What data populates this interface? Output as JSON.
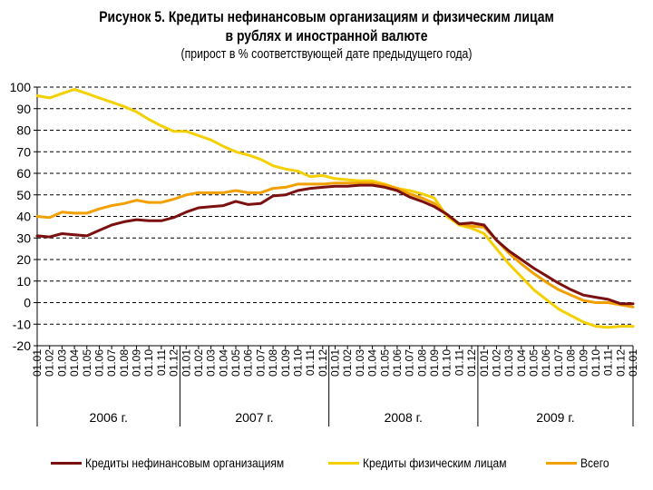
{
  "title": {
    "line1": "Рисунок 5. Кредиты нефинансовым организациям и физическим лицам",
    "line2": "в рублях и иностранной валюте",
    "line3": "(прирост в % соответствующей дате предыдущего года)"
  },
  "chart_data": {
    "type": "line",
    "ylim": [
      -20,
      100
    ],
    "yticks": [
      100,
      90,
      80,
      70,
      60,
      50,
      40,
      30,
      20,
      10,
      0,
      -10,
      -20
    ],
    "grid": "horizontal-dashed",
    "legend_position": "bottom",
    "x": [
      "01.01",
      "01.02",
      "01.03",
      "01.04",
      "01.05",
      "01.06",
      "01.07",
      "01.08",
      "01.09",
      "01.10",
      "01.11",
      "01.12",
      "01.01",
      "01.02",
      "01.03",
      "01.04",
      "01.05",
      "01.06",
      "01.07",
      "01.08",
      "01.09",
      "01.10",
      "01.11",
      "01.12",
      "01.01",
      "01.02",
      "01.03",
      "01.04",
      "01.05",
      "01.06",
      "01.07",
      "01.08",
      "01.09",
      "01.10",
      "01.11",
      "01.12",
      "01.01",
      "01.02",
      "01.03",
      "01.04",
      "01.05",
      "01.06",
      "01.07",
      "01.08",
      "01.09",
      "01.10",
      "01.11",
      "01.12",
      "01.01"
    ],
    "year_groups": [
      {
        "label": "2006 г.",
        "start": 0,
        "end": 11
      },
      {
        "label": "2007 г.",
        "start": 12,
        "end": 23
      },
      {
        "label": "2008 г.",
        "start": 24,
        "end": 35
      },
      {
        "label": "2009 г.",
        "start": 36,
        "end": 47
      }
    ],
    "series": [
      {
        "name": "Кредиты нефинансовым организациям",
        "color": "#7b1010",
        "values": [
          31,
          30.5,
          32,
          31.5,
          31,
          33.5,
          36,
          37.5,
          38.5,
          38,
          38,
          39.5,
          42,
          44,
          44.5,
          45,
          47,
          45.5,
          46,
          49.5,
          50,
          52,
          53,
          53.5,
          54,
          54,
          54.5,
          54.5,
          53.5,
          52,
          49,
          47,
          44.5,
          41,
          36.5,
          37,
          36,
          29,
          24,
          20,
          16,
          12.5,
          9,
          6,
          3.5,
          2.5,
          1.5,
          -0.5,
          -0.5
        ]
      },
      {
        "name": "Кредиты физическим лицам",
        "color": "#f5d000",
        "values": [
          96,
          95,
          97,
          99,
          97,
          95,
          93,
          91,
          88.5,
          85,
          82,
          79.5,
          79.5,
          77.5,
          75.5,
          72.5,
          70,
          68.5,
          66.5,
          63.5,
          62,
          61,
          58.5,
          59,
          57.5,
          57,
          56.5,
          56.5,
          55,
          53,
          52,
          50.5,
          48.5,
          40,
          36,
          34.5,
          32,
          25,
          18,
          12,
          6,
          1.5,
          -3,
          -6,
          -9,
          -11,
          -11.5,
          -11,
          -11
        ]
      },
      {
        "name": "Всего",
        "color": "#f2a000",
        "values": [
          40,
          39.5,
          42,
          41.5,
          41.5,
          43.5,
          45,
          46,
          47.5,
          46.5,
          46.5,
          48,
          50,
          51,
          51,
          51,
          52,
          51,
          51,
          53,
          53.5,
          55,
          55,
          55,
          55.5,
          55.5,
          55.5,
          55.5,
          54.5,
          53,
          50.5,
          48.5,
          46,
          41,
          36.5,
          35.5,
          35,
          29,
          23,
          18,
          13.5,
          9.5,
          6,
          3.5,
          1,
          0,
          0,
          -1,
          -2
        ]
      }
    ]
  },
  "legend": {
    "items": [
      {
        "label": "Кредиты нефинансовым организациям",
        "color": "#7b1010"
      },
      {
        "label": "Кредиты физическим лицам",
        "color": "#f5d000"
      },
      {
        "label": "Всего",
        "color": "#f2a000"
      }
    ]
  }
}
